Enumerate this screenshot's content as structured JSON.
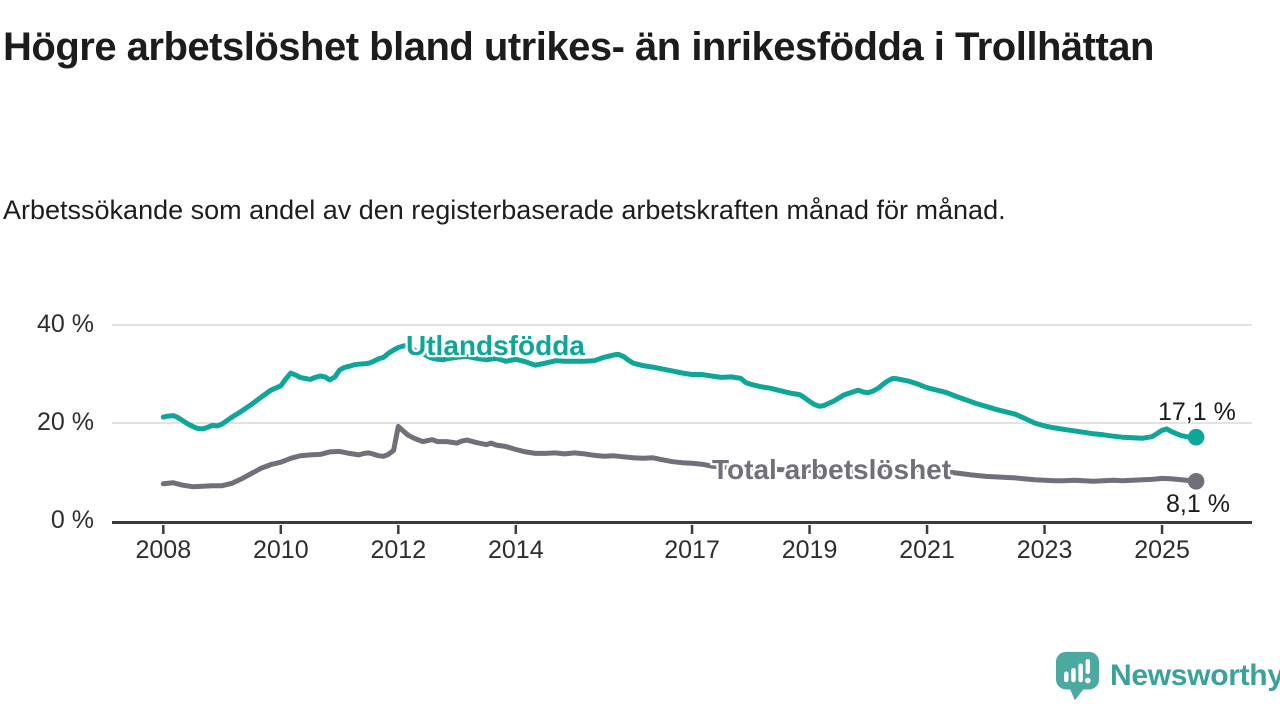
{
  "header": {
    "title": "Högre arbetslöshet bland utrikes- än inrikesfödda i Trollhättan",
    "subtitle": "Arbetssökande som andel av den registerbaserade arbetskraften månad för månad."
  },
  "branding": {
    "logo_text": "Newsworthy",
    "logo_icon": "newsworthy-speech-bubble-bar-chart-icon",
    "logo_color": "#4ba9a2",
    "logo_text_color": "#3aa29b"
  },
  "chart_data": {
    "type": "line",
    "title": "Högre arbetslöshet bland utrikes- än inrikesfödda i Trollhättan",
    "subtitle": "Arbetssökande som andel av den registerbaserade arbetskraften månad för månad.",
    "unit": "%",
    "xlabel": "",
    "ylabel": "",
    "ylim": [
      0,
      42
    ],
    "xlim": [
      2007.13,
      2026.5
    ],
    "grid": "horizontal",
    "grid_color": "#d9d9d9",
    "axis_color": "#3c3c3c",
    "x_ticks": [
      2008,
      2010,
      2012,
      2014,
      2017,
      2019,
      2021,
      2023,
      2025
    ],
    "y_ticks": [
      {
        "value": 0,
        "label": "0 %"
      },
      {
        "value": 20,
        "label": "20 %"
      },
      {
        "value": 40,
        "label": "40 %"
      }
    ],
    "series": [
      {
        "name": "Utlandsfödda",
        "color": "#0da698",
        "end_label": "17,1 %",
        "end_value": 17.1,
        "points": [
          [
            2008.0,
            21.2
          ],
          [
            2008.08,
            21.4
          ],
          [
            2008.17,
            21.5
          ],
          [
            2008.25,
            21.1
          ],
          [
            2008.33,
            20.5
          ],
          [
            2008.42,
            19.8
          ],
          [
            2008.5,
            19.3
          ],
          [
            2008.58,
            18.9
          ],
          [
            2008.67,
            18.8
          ],
          [
            2008.75,
            19.1
          ],
          [
            2008.83,
            19.5
          ],
          [
            2008.92,
            19.4
          ],
          [
            2009.0,
            19.8
          ],
          [
            2009.17,
            21.2
          ],
          [
            2009.33,
            22.4
          ],
          [
            2009.5,
            23.8
          ],
          [
            2009.67,
            25.3
          ],
          [
            2009.83,
            26.7
          ],
          [
            2010.0,
            27.6
          ],
          [
            2010.08,
            28.9
          ],
          [
            2010.17,
            30.2
          ],
          [
            2010.25,
            29.8
          ],
          [
            2010.33,
            29.3
          ],
          [
            2010.5,
            28.9
          ],
          [
            2010.58,
            29.3
          ],
          [
            2010.67,
            29.6
          ],
          [
            2010.75,
            29.4
          ],
          [
            2010.83,
            28.8
          ],
          [
            2010.92,
            29.4
          ],
          [
            2011.0,
            30.8
          ],
          [
            2011.08,
            31.3
          ],
          [
            2011.17,
            31.6
          ],
          [
            2011.25,
            31.9
          ],
          [
            2011.33,
            32.0
          ],
          [
            2011.42,
            32.1
          ],
          [
            2011.5,
            32.2
          ],
          [
            2011.58,
            32.6
          ],
          [
            2011.67,
            33.1
          ],
          [
            2011.75,
            33.4
          ],
          [
            2011.83,
            34.2
          ],
          [
            2011.92,
            34.9
          ],
          [
            2012.0,
            35.4
          ],
          [
            2012.08,
            35.7
          ],
          [
            2012.17,
            35.9
          ],
          [
            2012.25,
            35.0
          ],
          [
            2012.33,
            34.6
          ],
          [
            2012.42,
            34.2
          ],
          [
            2012.5,
            33.6
          ],
          [
            2012.58,
            33.2
          ],
          [
            2012.67,
            33.0
          ],
          [
            2012.75,
            32.9
          ],
          [
            2012.83,
            33.1
          ],
          [
            2013.0,
            33.4
          ],
          [
            2013.17,
            33.6
          ],
          [
            2013.33,
            33.2
          ],
          [
            2013.5,
            32.9
          ],
          [
            2013.67,
            33.2
          ],
          [
            2013.83,
            32.6
          ],
          [
            2014.0,
            33.0
          ],
          [
            2014.17,
            32.5
          ],
          [
            2014.33,
            31.8
          ],
          [
            2014.5,
            32.2
          ],
          [
            2014.67,
            32.7
          ],
          [
            2014.83,
            32.6
          ],
          [
            2015.0,
            32.6
          ],
          [
            2015.17,
            32.6
          ],
          [
            2015.33,
            32.7
          ],
          [
            2015.5,
            33.4
          ],
          [
            2015.67,
            33.9
          ],
          [
            2015.75,
            34.0
          ],
          [
            2015.83,
            33.6
          ],
          [
            2015.92,
            32.8
          ],
          [
            2016.0,
            32.2
          ],
          [
            2016.17,
            31.7
          ],
          [
            2016.33,
            31.4
          ],
          [
            2016.5,
            31.0
          ],
          [
            2016.67,
            30.6
          ],
          [
            2016.83,
            30.2
          ],
          [
            2017.0,
            29.9
          ],
          [
            2017.17,
            29.9
          ],
          [
            2017.33,
            29.6
          ],
          [
            2017.5,
            29.3
          ],
          [
            2017.67,
            29.4
          ],
          [
            2017.83,
            29.1
          ],
          [
            2017.92,
            28.2
          ],
          [
            2018.0,
            27.9
          ],
          [
            2018.17,
            27.4
          ],
          [
            2018.33,
            27.1
          ],
          [
            2018.5,
            26.6
          ],
          [
            2018.67,
            26.1
          ],
          [
            2018.83,
            25.8
          ],
          [
            2018.92,
            25.1
          ],
          [
            2019.0,
            24.4
          ],
          [
            2019.08,
            23.8
          ],
          [
            2019.17,
            23.4
          ],
          [
            2019.25,
            23.6
          ],
          [
            2019.42,
            24.5
          ],
          [
            2019.58,
            25.7
          ],
          [
            2019.75,
            26.4
          ],
          [
            2019.83,
            26.7
          ],
          [
            2019.92,
            26.3
          ],
          [
            2020.0,
            26.2
          ],
          [
            2020.08,
            26.5
          ],
          [
            2020.17,
            27.1
          ],
          [
            2020.25,
            27.9
          ],
          [
            2020.33,
            28.6
          ],
          [
            2020.42,
            29.1
          ],
          [
            2020.5,
            29.0
          ],
          [
            2020.67,
            28.6
          ],
          [
            2020.83,
            28.0
          ],
          [
            2021.0,
            27.2
          ],
          [
            2021.17,
            26.7
          ],
          [
            2021.33,
            26.2
          ],
          [
            2021.5,
            25.4
          ],
          [
            2021.67,
            24.7
          ],
          [
            2021.83,
            24.0
          ],
          [
            2022.0,
            23.4
          ],
          [
            2022.17,
            22.8
          ],
          [
            2022.33,
            22.3
          ],
          [
            2022.5,
            21.8
          ],
          [
            2022.67,
            20.9
          ],
          [
            2022.83,
            20.0
          ],
          [
            2023.0,
            19.4
          ],
          [
            2023.17,
            19.0
          ],
          [
            2023.33,
            18.7
          ],
          [
            2023.5,
            18.4
          ],
          [
            2023.67,
            18.1
          ],
          [
            2023.83,
            17.8
          ],
          [
            2024.0,
            17.6
          ],
          [
            2024.17,
            17.3
          ],
          [
            2024.33,
            17.1
          ],
          [
            2024.5,
            17.0
          ],
          [
            2024.67,
            16.9
          ],
          [
            2024.83,
            17.2
          ],
          [
            2024.92,
            17.9
          ],
          [
            2025.0,
            18.5
          ],
          [
            2025.08,
            18.8
          ],
          [
            2025.17,
            18.2
          ],
          [
            2025.25,
            17.8
          ],
          [
            2025.33,
            17.4
          ],
          [
            2025.42,
            17.2
          ],
          [
            2025.5,
            17.0
          ],
          [
            2025.58,
            17.1
          ]
        ]
      },
      {
        "name": "Total arbetslöshet",
        "color": "#70707a",
        "end_label": "8,1 %",
        "end_value": 8.1,
        "points": [
          [
            2008.0,
            7.6
          ],
          [
            2008.17,
            7.8
          ],
          [
            2008.33,
            7.3
          ],
          [
            2008.5,
            7.0
          ],
          [
            2008.67,
            7.1
          ],
          [
            2008.83,
            7.2
          ],
          [
            2009.0,
            7.2
          ],
          [
            2009.17,
            7.7
          ],
          [
            2009.33,
            8.6
          ],
          [
            2009.5,
            9.7
          ],
          [
            2009.67,
            10.8
          ],
          [
            2009.83,
            11.5
          ],
          [
            2010.0,
            12.0
          ],
          [
            2010.17,
            12.8
          ],
          [
            2010.33,
            13.3
          ],
          [
            2010.5,
            13.5
          ],
          [
            2010.67,
            13.6
          ],
          [
            2010.83,
            14.1
          ],
          [
            2011.0,
            14.2
          ],
          [
            2011.17,
            13.8
          ],
          [
            2011.33,
            13.5
          ],
          [
            2011.42,
            13.8
          ],
          [
            2011.5,
            13.9
          ],
          [
            2011.67,
            13.3
          ],
          [
            2011.75,
            13.2
          ],
          [
            2011.83,
            13.6
          ],
          [
            2011.92,
            14.4
          ],
          [
            2012.0,
            19.3
          ],
          [
            2012.08,
            18.4
          ],
          [
            2012.17,
            17.5
          ],
          [
            2012.25,
            17.0
          ],
          [
            2012.33,
            16.6
          ],
          [
            2012.42,
            16.2
          ],
          [
            2012.5,
            16.4
          ],
          [
            2012.58,
            16.6
          ],
          [
            2012.67,
            16.2
          ],
          [
            2012.83,
            16.2
          ],
          [
            2013.0,
            15.9
          ],
          [
            2013.08,
            16.3
          ],
          [
            2013.17,
            16.5
          ],
          [
            2013.33,
            16.0
          ],
          [
            2013.5,
            15.6
          ],
          [
            2013.58,
            15.9
          ],
          [
            2013.67,
            15.5
          ],
          [
            2013.83,
            15.2
          ],
          [
            2014.0,
            14.6
          ],
          [
            2014.17,
            14.1
          ],
          [
            2014.33,
            13.8
          ],
          [
            2014.5,
            13.8
          ],
          [
            2014.67,
            13.9
          ],
          [
            2014.83,
            13.7
          ],
          [
            2015.0,
            13.9
          ],
          [
            2015.17,
            13.7
          ],
          [
            2015.33,
            13.4
          ],
          [
            2015.5,
            13.2
          ],
          [
            2015.67,
            13.3
          ],
          [
            2015.83,
            13.1
          ],
          [
            2016.0,
            12.9
          ],
          [
            2016.17,
            12.8
          ],
          [
            2016.33,
            12.9
          ],
          [
            2016.5,
            12.5
          ],
          [
            2016.67,
            12.1
          ],
          [
            2016.83,
            11.9
          ],
          [
            2017.0,
            11.8
          ],
          [
            2017.17,
            11.6
          ],
          [
            2017.33,
            11.2
          ],
          [
            2017.5,
            11.0
          ],
          [
            2017.75,
            10.9
          ],
          [
            2018.0,
            10.8
          ],
          [
            2018.25,
            10.6
          ],
          [
            2018.5,
            10.5
          ],
          [
            2018.75,
            10.4
          ],
          [
            2019.0,
            10.3
          ],
          [
            2019.25,
            10.2
          ],
          [
            2019.5,
            10.1
          ],
          [
            2019.75,
            10.1
          ],
          [
            2020.0,
            10.2
          ],
          [
            2020.25,
            10.5
          ],
          [
            2020.5,
            10.7
          ],
          [
            2020.75,
            10.6
          ],
          [
            2021.0,
            10.4
          ],
          [
            2021.25,
            10.1
          ],
          [
            2021.5,
            9.8
          ],
          [
            2021.75,
            9.4
          ],
          [
            2022.0,
            9.1
          ],
          [
            2022.17,
            9.0
          ],
          [
            2022.33,
            8.9
          ],
          [
            2022.5,
            8.8
          ],
          [
            2022.67,
            8.6
          ],
          [
            2022.83,
            8.4
          ],
          [
            2023.0,
            8.3
          ],
          [
            2023.17,
            8.2
          ],
          [
            2023.33,
            8.2
          ],
          [
            2023.5,
            8.3
          ],
          [
            2023.67,
            8.2
          ],
          [
            2023.83,
            8.1
          ],
          [
            2024.0,
            8.2
          ],
          [
            2024.17,
            8.3
          ],
          [
            2024.33,
            8.2
          ],
          [
            2024.5,
            8.3
          ],
          [
            2024.67,
            8.4
          ],
          [
            2024.83,
            8.5
          ],
          [
            2025.0,
            8.7
          ],
          [
            2025.17,
            8.6
          ],
          [
            2025.33,
            8.4
          ],
          [
            2025.5,
            8.2
          ],
          [
            2025.58,
            8.1
          ]
        ]
      }
    ]
  }
}
